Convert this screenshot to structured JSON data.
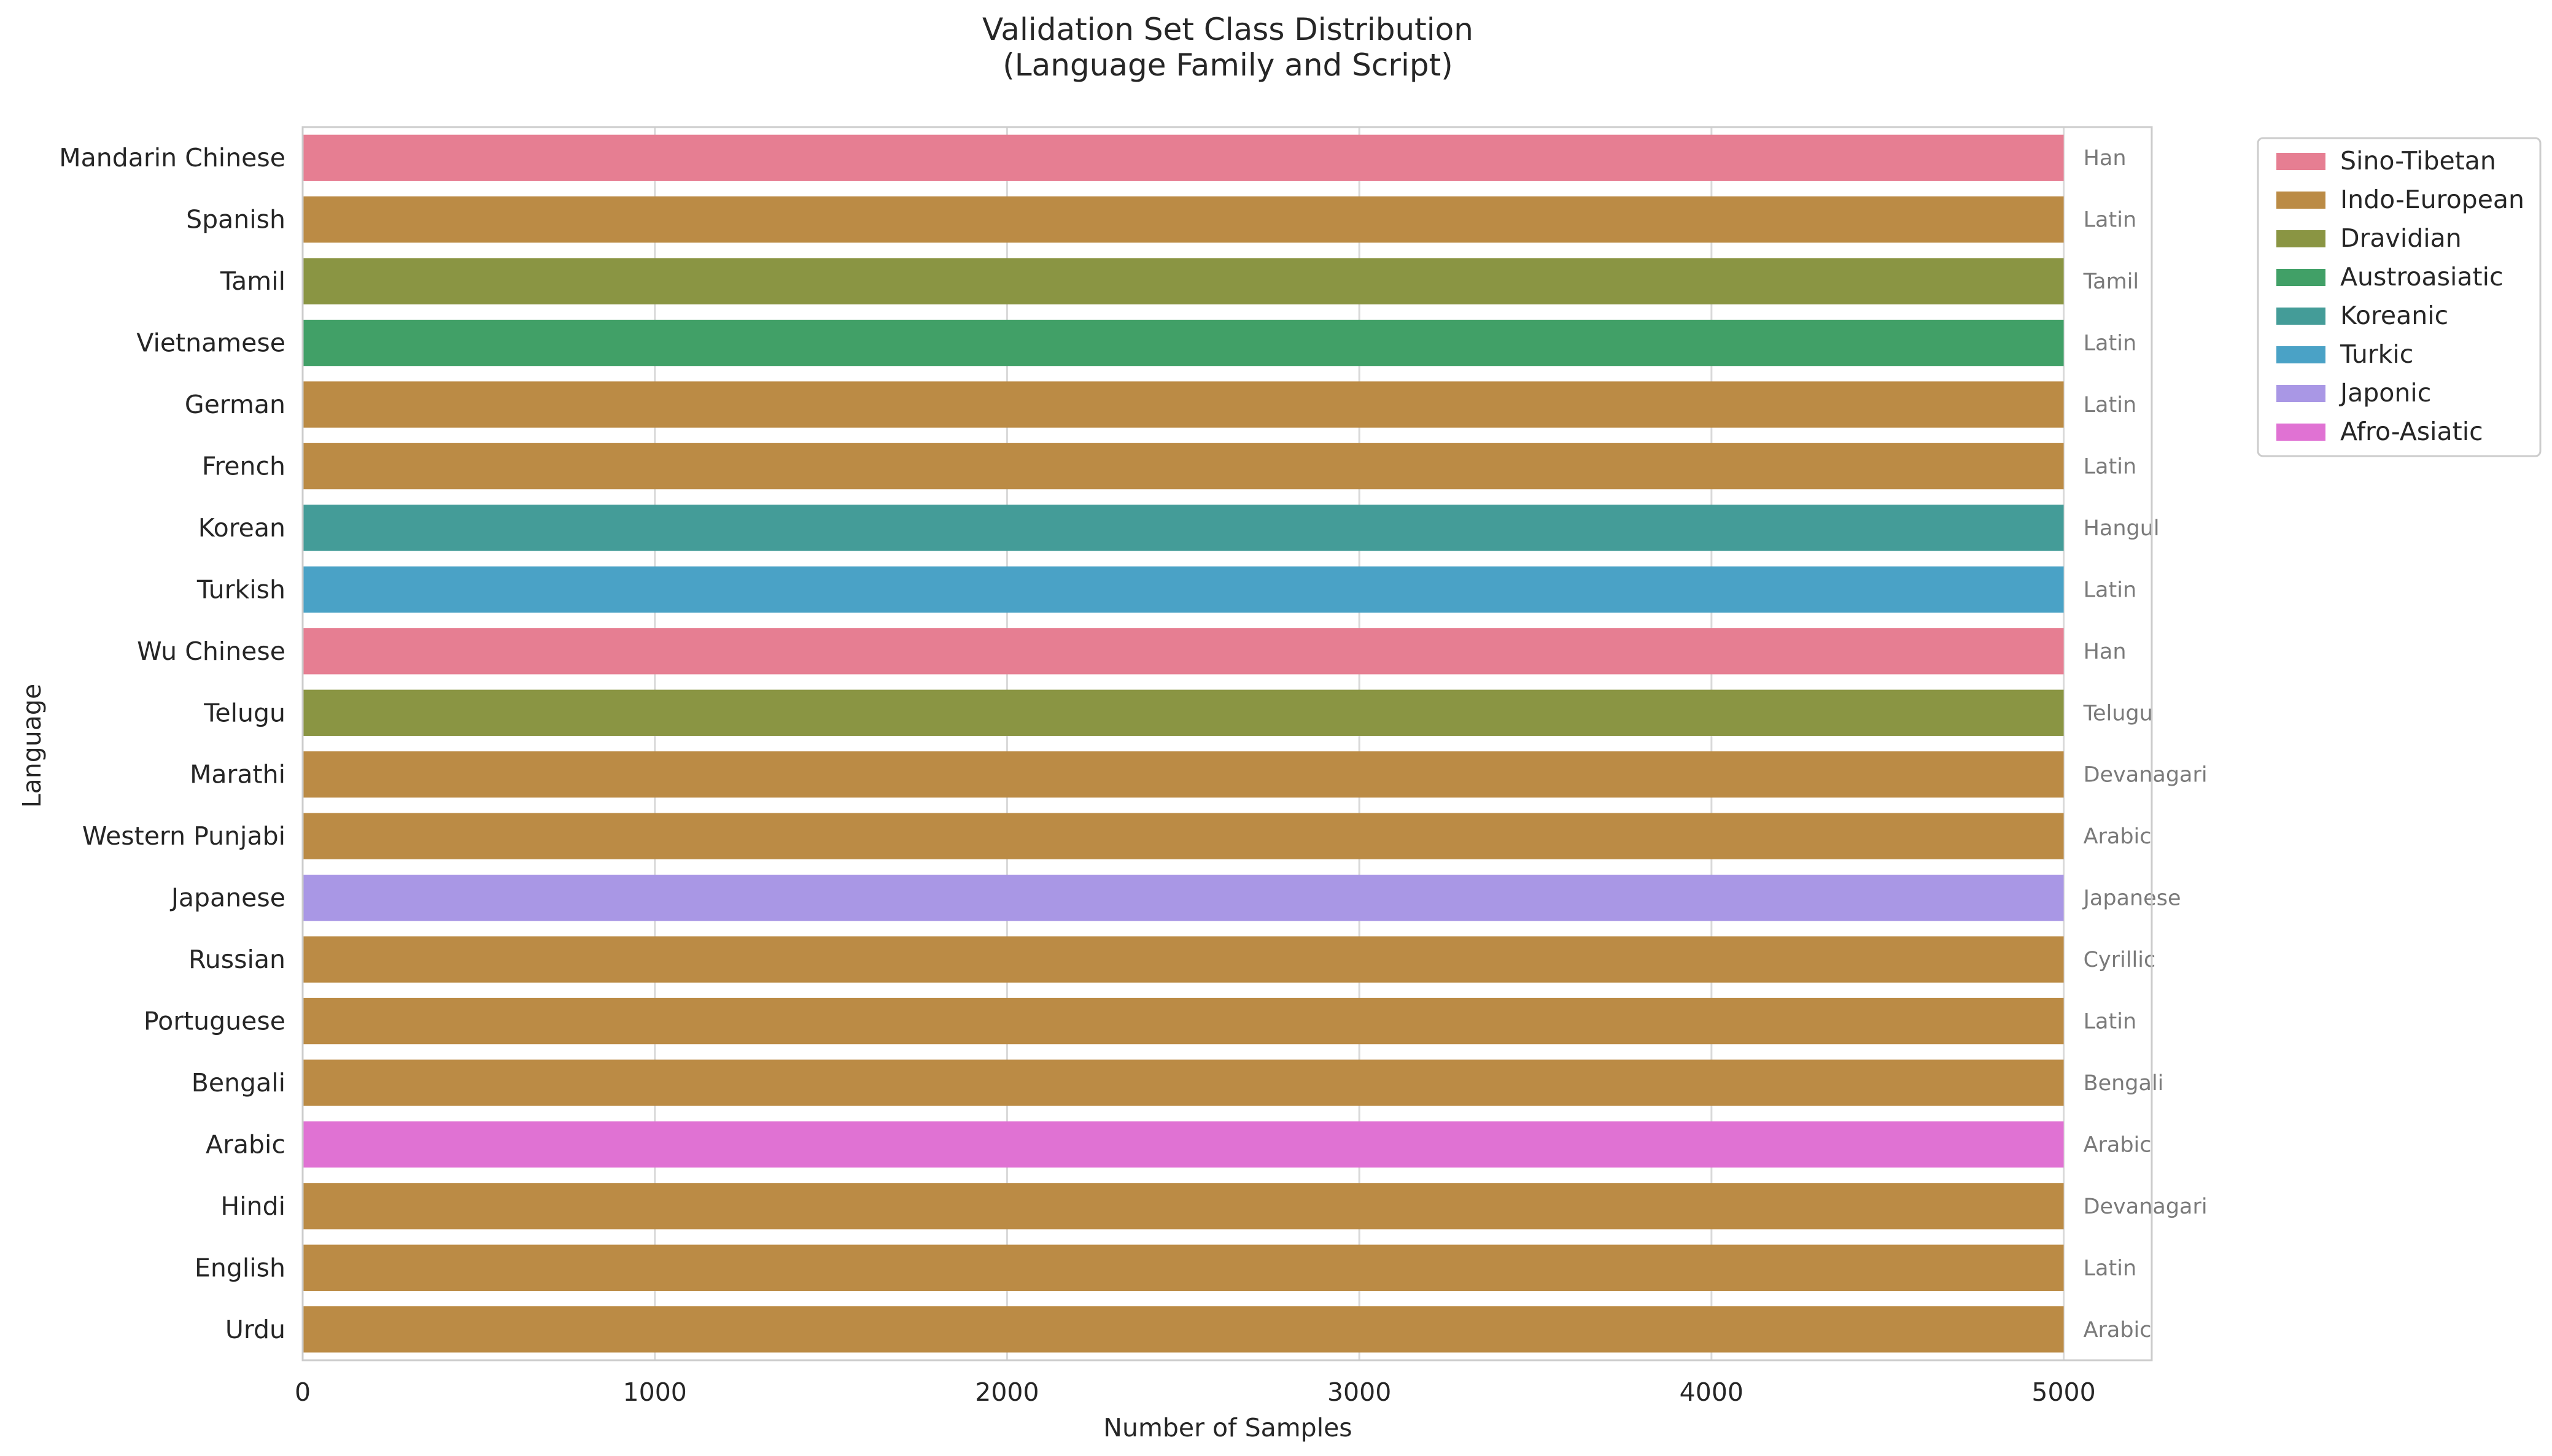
{
  "chart_data": {
    "type": "bar",
    "orientation": "horizontal",
    "title": "Validation Set Class Distribution",
    "subtitle": "(Language Family and Script)",
    "xlabel": "Number of Samples",
    "ylabel": "Language",
    "xlim": [
      0,
      5250
    ],
    "xticks": [
      0,
      1000,
      2000,
      3000,
      4000,
      5000
    ],
    "grid": true,
    "legend_position": "outside-right",
    "legend": [
      {
        "name": "Sino-Tibetan",
        "color": "#e67e92"
      },
      {
        "name": "Indo-European",
        "color": "#bb8b45"
      },
      {
        "name": "Dravidian",
        "color": "#8a9543"
      },
      {
        "name": "Austroasiatic",
        "color": "#41a067"
      },
      {
        "name": "Koreanic",
        "color": "#449c98"
      },
      {
        "name": "Turkic",
        "color": "#4aa2c6"
      },
      {
        "name": "Japonic",
        "color": "#a997e5"
      },
      {
        "name": "Afro-Asiatic",
        "color": "#e072d3"
      }
    ],
    "categories": [
      "Mandarin Chinese",
      "Spanish",
      "Tamil",
      "Vietnamese",
      "German",
      "French",
      "Korean",
      "Turkish",
      "Wu Chinese",
      "Telugu",
      "Marathi",
      "Western Punjabi",
      "Japanese",
      "Russian",
      "Portuguese",
      "Bengali",
      "Arabic",
      "Hindi",
      "English",
      "Urdu"
    ],
    "values": [
      5000,
      5000,
      5000,
      5000,
      5000,
      5000,
      5000,
      5000,
      5000,
      5000,
      5000,
      5000,
      5000,
      5000,
      5000,
      5000,
      5000,
      5000,
      5000,
      5000
    ],
    "families": [
      "Sino-Tibetan",
      "Indo-European",
      "Dravidian",
      "Austroasiatic",
      "Indo-European",
      "Indo-European",
      "Koreanic",
      "Turkic",
      "Sino-Tibetan",
      "Dravidian",
      "Indo-European",
      "Indo-European",
      "Japonic",
      "Indo-European",
      "Indo-European",
      "Indo-European",
      "Afro-Asiatic",
      "Indo-European",
      "Indo-European",
      "Indo-European"
    ],
    "scripts": [
      "Han",
      "Latin",
      "Tamil",
      "Latin",
      "Latin",
      "Latin",
      "Hangul",
      "Latin",
      "Han",
      "Telugu",
      "Devanagari",
      "Arabic",
      "Japanese",
      "Cyrillic",
      "Latin",
      "Bengali",
      "Arabic",
      "Devanagari",
      "Latin",
      "Arabic"
    ]
  }
}
